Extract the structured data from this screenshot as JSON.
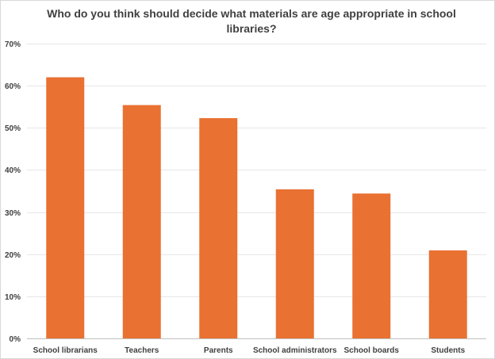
{
  "chart_data": {
    "type": "bar",
    "title": "Who do you think should decide what materials are age appropriate in school libraries?",
    "categories": [
      "School librarians",
      "Teachers",
      "Parents",
      "School administrators",
      "School boards",
      "Students"
    ],
    "series": [
      {
        "name": "Share of respondents",
        "values": [
          62,
          55.4,
          52.3,
          35.4,
          34.4,
          20.9
        ]
      }
    ],
    "ylim": [
      0,
      70
    ],
    "yticks": [
      0,
      10,
      20,
      30,
      40,
      50,
      60,
      70
    ],
    "ytick_labels": [
      "0%",
      "10%",
      "20%",
      "30%",
      "40%",
      "50%",
      "60%",
      "70%"
    ],
    "xlabel": "",
    "ylabel": "",
    "grid": true,
    "legend": "none",
    "bar_color": "#E97132"
  }
}
